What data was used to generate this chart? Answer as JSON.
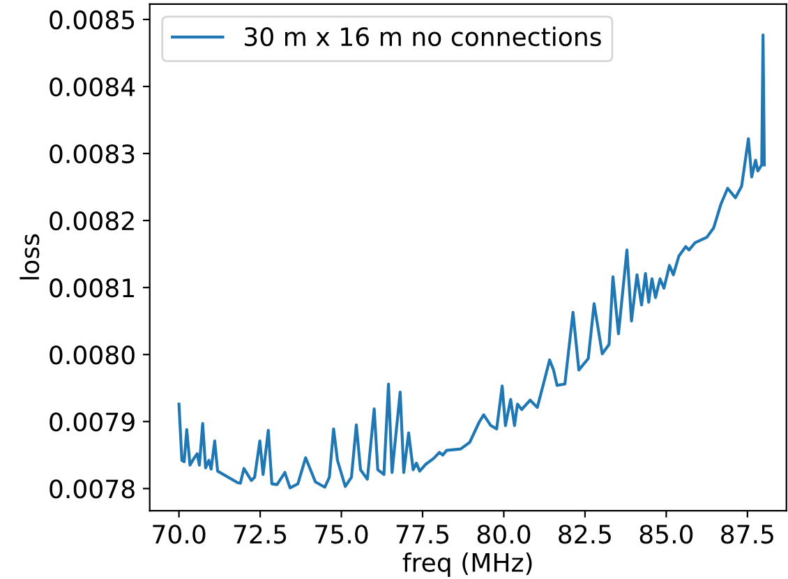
{
  "chart_data": {
    "type": "line",
    "xlabel": "freq (MHz)",
    "ylabel": "loss",
    "legend": "top left",
    "grid": false,
    "xlim": [
      69.1,
      88.7
    ],
    "ylim": [
      0.007767,
      0.008523
    ],
    "xticks": [
      {
        "value": 70,
        "label": "70.0"
      },
      {
        "value": 72.5,
        "label": "72.5"
      },
      {
        "value": 75,
        "label": "75.0"
      },
      {
        "value": 77.5,
        "label": "77.5"
      },
      {
        "value": 80,
        "label": "80.0"
      },
      {
        "value": 82.5,
        "label": "82.5"
      },
      {
        "value": 85,
        "label": "85.0"
      },
      {
        "value": 87.5,
        "label": "87.5"
      }
    ],
    "yticks": [
      {
        "value": 0.0078,
        "label": "0.0078"
      },
      {
        "value": 0.0079,
        "label": "0.0079"
      },
      {
        "value": 0.008,
        "label": "0.0080"
      },
      {
        "value": 0.0081,
        "label": "0.0081"
      },
      {
        "value": 0.0082,
        "label": "0.0082"
      },
      {
        "value": 0.0083,
        "label": "0.0083"
      },
      {
        "value": 0.0084,
        "label": "0.0084"
      },
      {
        "value": 0.0085,
        "label": "0.0085"
      }
    ],
    "series": [
      {
        "name": "30 m x 16 m no connections",
        "color": "#1f77b4",
        "x": [
          70.0,
          70.09,
          70.16,
          70.24,
          70.34,
          70.46,
          70.56,
          70.63,
          70.73,
          70.82,
          70.92,
          70.99,
          71.1,
          71.19,
          71.8,
          71.89,
          72.0,
          72.23,
          72.33,
          72.49,
          72.59,
          72.75,
          72.86,
          73.02,
          73.26,
          73.42,
          73.66,
          73.9,
          74.2,
          74.49,
          74.63,
          74.76,
          74.88,
          75.12,
          75.31,
          75.46,
          75.59,
          75.8,
          76.01,
          76.12,
          76.31,
          76.45,
          76.56,
          76.81,
          76.92,
          77.07,
          77.21,
          77.31,
          77.41,
          77.59,
          77.84,
          78.02,
          78.12,
          78.24,
          78.67,
          78.95,
          79.24,
          79.38,
          79.6,
          79.78,
          79.95,
          80.05,
          80.21,
          80.33,
          80.42,
          80.55,
          80.81,
          81.03,
          81.24,
          81.41,
          81.53,
          81.64,
          81.88,
          82.13,
          82.31,
          82.6,
          82.78,
          83.03,
          83.24,
          83.36,
          83.53,
          83.79,
          83.93,
          84.1,
          84.24,
          84.36,
          84.46,
          84.56,
          84.67,
          84.81,
          84.93,
          85.1,
          85.22,
          85.39,
          85.6,
          85.7,
          85.89,
          86.25,
          86.46,
          86.68,
          86.89,
          87.13,
          87.32,
          87.53,
          87.63,
          87.75,
          87.82,
          87.94,
          87.98,
          88.02
        ],
        "values": [
          0.007926,
          0.007842,
          0.00784,
          0.007888,
          0.007835,
          0.007845,
          0.007852,
          0.007835,
          0.007897,
          0.007831,
          0.007842,
          0.007829,
          0.007871,
          0.007826,
          0.007809,
          0.007808,
          0.00783,
          0.007812,
          0.007817,
          0.007871,
          0.007821,
          0.007887,
          0.007807,
          0.007806,
          0.007824,
          0.007801,
          0.007807,
          0.007846,
          0.00781,
          0.007802,
          0.007817,
          0.007889,
          0.007842,
          0.007803,
          0.007817,
          0.007895,
          0.007828,
          0.007814,
          0.007919,
          0.007828,
          0.007821,
          0.007956,
          0.007824,
          0.007944,
          0.007824,
          0.007883,
          0.007828,
          0.007838,
          0.007826,
          0.007836,
          0.007845,
          0.007854,
          0.00785,
          0.007857,
          0.007859,
          0.007869,
          0.007899,
          0.00791,
          0.007894,
          0.007889,
          0.007953,
          0.007894,
          0.007933,
          0.007894,
          0.007926,
          0.007918,
          0.007932,
          0.007921,
          0.00796,
          0.007992,
          0.007977,
          0.007954,
          0.007956,
          0.008063,
          0.007977,
          0.007994,
          0.008076,
          0.008001,
          0.008015,
          0.008116,
          0.008031,
          0.008156,
          0.00805,
          0.008119,
          0.008074,
          0.008121,
          0.008078,
          0.008113,
          0.008085,
          0.008113,
          0.008099,
          0.008133,
          0.008119,
          0.008147,
          0.008161,
          0.008156,
          0.008167,
          0.008175,
          0.008189,
          0.008224,
          0.008248,
          0.008234,
          0.008251,
          0.008322,
          0.008265,
          0.00829,
          0.008274,
          0.008283,
          0.008477,
          0.008283
        ]
      }
    ]
  }
}
